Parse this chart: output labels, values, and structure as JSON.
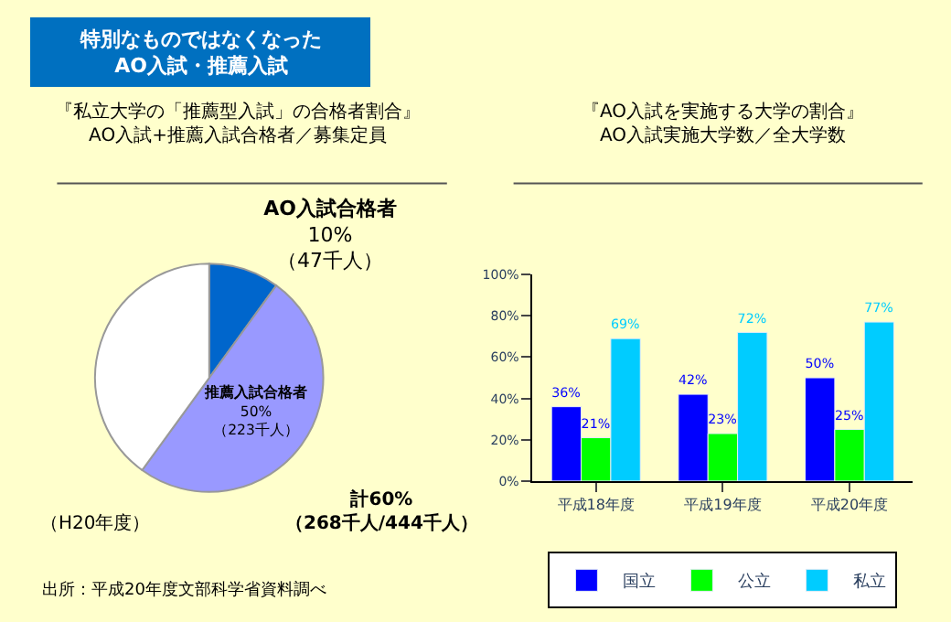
{
  "chart_data": [
    {
      "type": "pie",
      "title": "特別なものではなくなった\nAO入試・推薦入試",
      "subtitle": "『私立大学の「推薦型入試」の合格者割合』\nAO入試+推薦入試合格者／募集定員",
      "categories": [
        "AO入試合格者",
        "推薦入試合格者",
        null
      ],
      "values": [
        10,
        50,
        40
      ],
      "colors": [
        "#0066cc",
        "#9999ff",
        "#ffffff"
      ],
      "value_labels": [
        "10%\n（47千人）",
        "50%\n（223千人）",
        null
      ],
      "annotations": [
        "計60%\n（268千人/444千人）",
        "（H20年度）",
        "出所：平成20年度文部科学省資料調べ"
      ]
    },
    {
      "type": "bar",
      "title": "『AO入試を実施する大学の割合』",
      "subtitle": "AO入試実施大学数／全大学数",
      "categories": [
        "平成18年度",
        "平成19年度",
        "平成20年度"
      ],
      "series": [
        {
          "name": "国立",
          "color": "#0000ff",
          "values": [
            36,
            42,
            50
          ],
          "value_labels": [
            "36%",
            "42%",
            "50%"
          ]
        },
        {
          "name": "公立",
          "color": "#00ff00",
          "values": [
            21,
            23,
            25
          ],
          "value_labels": [
            "21%",
            "23%",
            "25%"
          ]
        },
        {
          "name": "私立",
          "color": "#00ccff",
          "values": [
            69,
            72,
            77
          ],
          "value_labels": [
            "69%",
            "72%",
            "77%"
          ]
        }
      ],
      "ylim": [
        0,
        100
      ],
      "yticks": [
        {
          "value": 0,
          "label": "0%"
        },
        {
          "value": 20,
          "label": "20%"
        },
        {
          "value": 40,
          "label": "40%"
        },
        {
          "value": 60,
          "label": "60%"
        },
        {
          "value": 80,
          "label": "80%"
        },
        {
          "value": 100,
          "label": "100%"
        }
      ],
      "grid": false,
      "legend": "bottom"
    }
  ]
}
